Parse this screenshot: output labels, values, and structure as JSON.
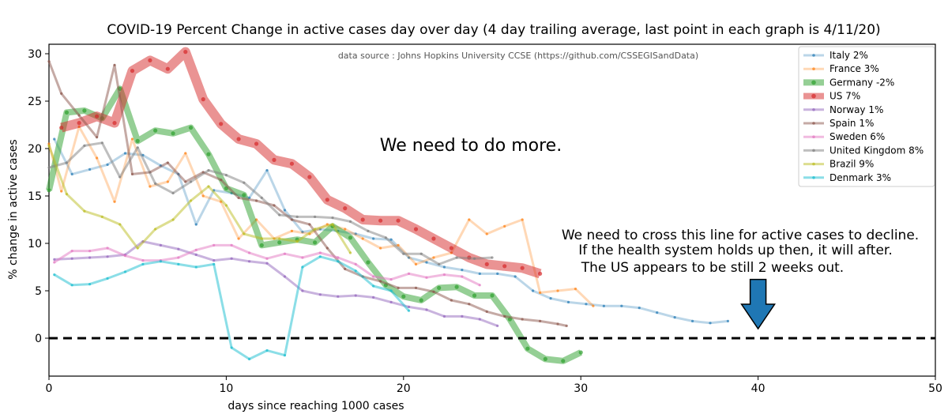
{
  "chart_data": {
    "type": "line",
    "title": "COVID-19 Percent Change in active cases day over day (4 day trailing average, last point in each graph is 4/11/20)",
    "source": "data source : Johns Hopkins University CCSE (https://github.com/CSSEGISandData)",
    "xlabel": "days since reaching 1000 cases",
    "ylabel": "% change in active cases",
    "xlim": [
      0,
      50
    ],
    "ylim": [
      -4,
      31
    ],
    "xticks": [
      0,
      10,
      20,
      30,
      40,
      50
    ],
    "yticks": [
      0,
      5,
      10,
      15,
      20,
      25,
      30
    ],
    "legend_position": "top-right",
    "annotations": {
      "main": "We need to do more.",
      "line1": "We need to cross this line for active cases to decline.",
      "line2": "If the health system holds up then, it will after.",
      "line3": "The US appears to be still 2 weeks out."
    },
    "reference_line": {
      "y": 0,
      "style": "dashed",
      "color": "#000000"
    },
    "arrow": {
      "x": 40,
      "y_top": 6.2,
      "y_bottom": 1.0,
      "color": "#1f77b4"
    },
    "series": [
      {
        "name": "Italy 2%",
        "color": "#1f77b4",
        "width": 3,
        "opacity": 0.3,
        "x": [
          0.3,
          1.3,
          2.3,
          3.3,
          4.3,
          5.3,
          6.3,
          7.3,
          8.3,
          9.3,
          10.3,
          11.3,
          12.3,
          13.3,
          14.3,
          15.3,
          16.3,
          17.3,
          18.3,
          19.3,
          20.3,
          21.3,
          22.3,
          23.3,
          24.3,
          25.3,
          26.3,
          27.3,
          28.3,
          29.3,
          30.3,
          31.3,
          32.3,
          33.3,
          34.3,
          35.3,
          36.3,
          37.3,
          38.3
        ],
        "y": [
          21,
          17.3,
          17.8,
          18.3,
          19.5,
          19.3,
          18.2,
          17.3,
          12.0,
          15.6,
          15.3,
          14.8,
          17.7,
          13.5,
          11.2,
          11.5,
          11.3,
          11.0,
          10.5,
          10.4,
          8.5,
          8.0,
          7.5,
          7.2,
          6.8,
          6.8,
          6.5,
          5.0,
          4.2,
          3.8,
          3.6,
          3.4,
          3.4,
          3.2,
          2.7,
          2.2,
          1.8,
          1.6,
          1.8
        ]
      },
      {
        "name": "France 3%",
        "color": "#ff7f0e",
        "width": 3,
        "opacity": 0.3,
        "x": [
          0,
          0.7,
          1.7,
          2.7,
          3.7,
          4.7,
          5.7,
          6.7,
          7.7,
          8.7,
          9.7,
          10.7,
          11.7,
          12.7,
          13.7,
          14.7,
          15.7,
          16.7,
          17.7,
          18.7,
          19.7,
          20.7,
          21.7,
          22.7,
          23.7,
          24.7,
          25.7,
          26.7,
          27.7,
          28.7,
          29.7,
          30.7
        ],
        "y": [
          20.5,
          15.5,
          22.3,
          19.0,
          14.4,
          21.0,
          16.0,
          16.5,
          19.5,
          15.0,
          14.4,
          10.5,
          12.5,
          10.5,
          11.3,
          11.0,
          12.0,
          11.5,
          10.5,
          9.5,
          9.8,
          7.8,
          8.5,
          9.0,
          12.5,
          11.0,
          11.8,
          12.5,
          4.8,
          5.0,
          5.2,
          3.4
        ]
      },
      {
        "name": "Germany -2%",
        "color": "#2ca02c",
        "width": 8,
        "opacity": 0.5,
        "x": [
          0,
          1,
          2,
          3,
          4,
          5,
          6,
          7,
          8,
          9,
          10,
          11,
          12,
          13,
          14,
          15,
          16,
          17,
          18,
          19,
          20,
          21,
          22,
          23,
          24,
          25,
          26,
          27,
          28,
          29,
          30
        ],
        "y": [
          15.6,
          23.8,
          24.0,
          23.2,
          26.3,
          20.8,
          21.9,
          21.6,
          22.2,
          19.4,
          15.8,
          15.1,
          9.8,
          10.1,
          10.4,
          10.1,
          11.8,
          10.6,
          8.0,
          5.6,
          4.4,
          4.0,
          5.3,
          5.4,
          4.5,
          4.5,
          2.0,
          -1.1,
          -2.2,
          -2.4,
          -1.5
        ]
      },
      {
        "name": "US 7%",
        "color": "#d62728",
        "width": 12,
        "opacity": 0.5,
        "x": [
          0.7,
          1.7,
          2.7,
          3.7,
          4.7,
          5.7,
          6.7,
          7.7,
          8.7,
          9.7,
          10.7,
          11.7,
          12.7,
          13.7,
          14.7,
          15.7,
          16.7,
          17.7,
          18.7,
          19.7,
          20.7,
          21.7,
          22.7,
          23.7,
          24.7,
          25.7,
          26.7,
          27.7
        ],
        "y": [
          22.2,
          22.7,
          23.4,
          22.7,
          28.2,
          29.3,
          28.4,
          30.2,
          25.2,
          22.6,
          21.0,
          20.5,
          18.8,
          18.4,
          17.0,
          14.6,
          13.7,
          12.5,
          12.4,
          12.4,
          11.5,
          10.5,
          9.5,
          8.5,
          7.8,
          7.6,
          7.4,
          6.8
        ]
      },
      {
        "name": "Norway 1%",
        "color": "#9467bd",
        "width": 3,
        "opacity": 0.5,
        "x": [
          0.3,
          1.3,
          2.3,
          3.3,
          4.3,
          5.3,
          6.3,
          7.3,
          8.3,
          9.3,
          10.3,
          11.3,
          12.3,
          13.3,
          14.3,
          15.3,
          16.3,
          17.3,
          18.3,
          19.3,
          20.3,
          21.3,
          22.3,
          23.3,
          24.3,
          25.3
        ],
        "y": [
          8.3,
          8.4,
          8.5,
          8.6,
          8.8,
          10.2,
          9.8,
          9.4,
          8.8,
          8.2,
          8.4,
          8.1,
          7.9,
          6.5,
          5.0,
          4.6,
          4.4,
          4.5,
          4.3,
          3.8,
          3.3,
          3.0,
          2.3,
          2.3,
          2.0,
          1.3
        ]
      },
      {
        "name": "Spain 1%",
        "color": "#8c564b",
        "width": 3,
        "opacity": 0.5,
        "x": [
          0,
          0.7,
          1.7,
          2.7,
          3.7,
          4.7,
          5.7,
          6.7,
          7.7,
          8.7,
          9.7,
          10.7,
          11.7,
          12.7,
          13.7,
          14.7,
          15.7,
          16.7,
          17.7,
          18.7,
          19.7,
          20.7,
          21.7,
          22.7,
          23.7,
          24.7,
          25.7,
          26.7,
          27.7,
          28.7,
          29.2
        ],
        "y": [
          29.2,
          25.8,
          23.5,
          21.2,
          28.8,
          17.3,
          17.5,
          18.5,
          16.5,
          17.5,
          16.7,
          14.8,
          14.5,
          14.0,
          12.5,
          12.0,
          9.5,
          7.3,
          6.5,
          6.0,
          5.3,
          5.3,
          4.9,
          4.0,
          3.6,
          2.8,
          2.3,
          2.0,
          1.8,
          1.5,
          1.3
        ]
      },
      {
        "name": "Sweden 6%",
        "color": "#e377c2",
        "width": 3,
        "opacity": 0.5,
        "x": [
          0.3,
          1.3,
          2.3,
          3.3,
          4.3,
          5.3,
          6.3,
          7.3,
          8.3,
          9.3,
          10.3,
          11.3,
          12.3,
          13.3,
          14.3,
          15.3,
          16.3,
          17.3,
          18.3,
          19.3,
          20.3,
          21.3,
          22.3,
          23.3,
          24.3
        ],
        "y": [
          8.0,
          9.2,
          9.2,
          9.5,
          8.7,
          8.2,
          8.2,
          8.5,
          9.3,
          9.8,
          9.8,
          9.0,
          8.4,
          8.9,
          8.5,
          9.0,
          8.5,
          7.8,
          6.5,
          6.2,
          6.8,
          6.4,
          6.7,
          6.5,
          5.6
        ]
      },
      {
        "name": "United Kingdom 8%",
        "color": "#7f7f7f",
        "width": 3,
        "opacity": 0.5,
        "x": [
          0,
          1,
          2,
          3,
          4,
          5,
          6,
          7,
          8,
          9,
          10,
          11,
          12,
          13,
          14,
          15,
          16,
          17,
          18,
          19,
          20,
          21,
          22,
          23,
          24,
          25
        ],
        "y": [
          18,
          18.5,
          20.3,
          20.6,
          17.0,
          20.1,
          16.3,
          15.3,
          16.5,
          17.7,
          17.2,
          16.4,
          14.8,
          13.0,
          12.8,
          12.8,
          12.7,
          12.3,
          11.3,
          10.6,
          8.9,
          8.9,
          7.8,
          8.5,
          8.4,
          8.5
        ]
      },
      {
        "name": "Brazil 9%",
        "color": "#bcbd22",
        "width": 3,
        "opacity": 0.5,
        "x": [
          0,
          1,
          2,
          3,
          4,
          5,
          6,
          7,
          8,
          9,
          10,
          11,
          12,
          13,
          14,
          15,
          16,
          17
        ],
        "y": [
          20.3,
          15.2,
          13.4,
          12.8,
          12.0,
          9.5,
          11.5,
          12.5,
          14.5,
          16.0,
          14.0,
          11.0,
          10.5,
          10.5,
          10.2,
          11.5,
          12.0,
          9.0
        ]
      },
      {
        "name": "Denmark 3%",
        "color": "#17becf",
        "width": 3,
        "opacity": 0.5,
        "x": [
          0.3,
          1.3,
          2.3,
          3.3,
          4.3,
          5.3,
          6.3,
          7.3,
          8.3,
          9.3,
          10.3,
          11.3,
          12.3,
          13.3,
          14.3,
          15.3,
          16.3,
          17.3,
          18.3,
          19.3,
          20.3
        ],
        "y": [
          6.7,
          5.6,
          5.7,
          6.3,
          7.0,
          7.8,
          8.1,
          7.8,
          7.5,
          7.8,
          -1.0,
          -2.2,
          -1.3,
          -1.8,
          7.5,
          8.6,
          8.1,
          7.1,
          5.5,
          5.0,
          2.9
        ]
      }
    ]
  }
}
